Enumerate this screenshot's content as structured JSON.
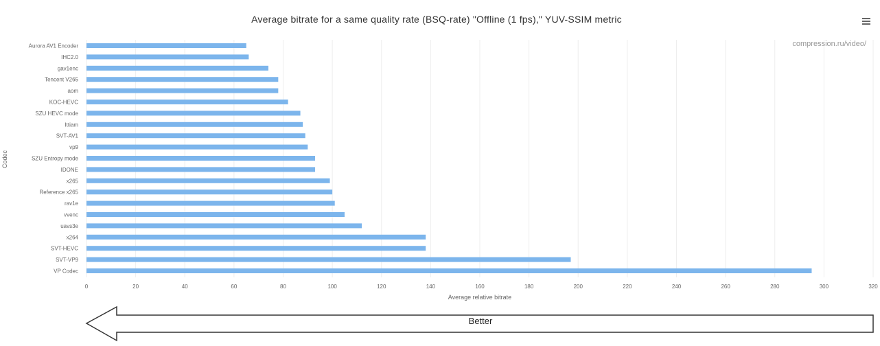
{
  "chart_data": {
    "type": "bar",
    "orientation": "horizontal",
    "title": "Average bitrate for a same quality rate (BSQ-rate) \"Offline (1 fps),\" YUV-SSIM metric",
    "credits": "compression.ru/video/",
    "xlabel": "Average relative bitrate",
    "ylabel": "Codec",
    "xlim": [
      0,
      320
    ],
    "xticks": [
      0,
      20,
      40,
      60,
      80,
      100,
      120,
      140,
      160,
      180,
      200,
      220,
      240,
      260,
      280,
      300,
      320
    ],
    "grid": true,
    "legend": "none",
    "categories": [
      "Aurora AV1 Encoder",
      "IHC2.0",
      "gav1enc",
      "Tencent V265",
      "aom",
      "KOC-HEVC",
      "SZU HEVC mode",
      "Ittiam",
      "SVT-AV1",
      "vp9",
      "SZU Entropy mode",
      "IDONE",
      "x265",
      "Reference x265",
      "rav1e",
      "vvenc",
      "uavs3e",
      "x264",
      "SVT-HEVC",
      "SVT-VP9",
      "VP Codec"
    ],
    "values": [
      65,
      66,
      74,
      78,
      78,
      82,
      87,
      88,
      89,
      90,
      93,
      93,
      99,
      100,
      101,
      105,
      112,
      138,
      138,
      197,
      295
    ],
    "bar_color": "#7cb5ec",
    "annotation": {
      "text": "Better",
      "direction": "left"
    }
  },
  "ui": {
    "menu_icon": "hamburger-menu-icon",
    "text_color": "#333333",
    "axis_label_color": "#666666"
  }
}
